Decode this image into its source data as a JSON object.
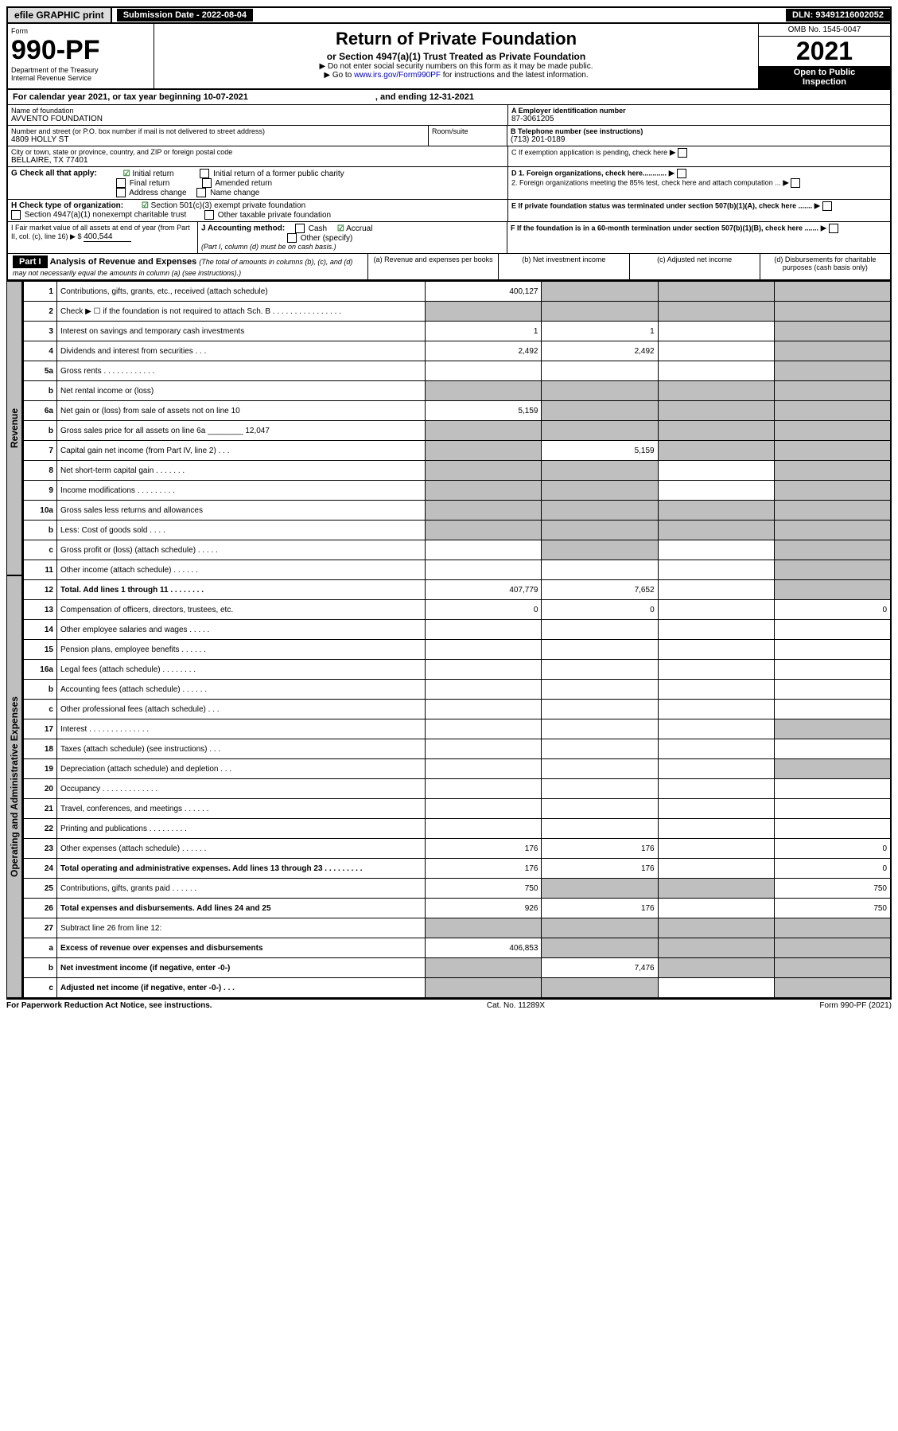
{
  "top": {
    "efile": "efile GRAPHIC print",
    "sub": "Submission Date - 2022-08-04",
    "dln": "DLN: 93491216002052"
  },
  "hleft": {
    "form": "Form",
    "no": "990-PF",
    "dept": "Department of the Treasury",
    "irs": "Internal Revenue Service"
  },
  "hcenter": {
    "title": "Return of Private Foundation",
    "sub1": "or Section 4947(a)(1) Trust Treated as Private Foundation",
    "sub2": "▶ Do not enter social security numbers on this form as it may be made public.",
    "sub3": "▶ Go to ",
    "link": "www.irs.gov/Form990PF",
    "sub4": " for instructions and the latest information."
  },
  "hright": {
    "omb": "OMB No. 1545-0047",
    "year": "2021",
    "otp1": "Open to Public",
    "otp2": "Inspection"
  },
  "cal": {
    "text": "For calendar year 2021, or tax year beginning 10-07-2021",
    "end": ", and ending 12-31-2021"
  },
  "name": {
    "lbl": "Name of foundation",
    "val": "AVVENTO FOUNDATION"
  },
  "ein": {
    "lbl": "A Employer identification number",
    "val": "87-3061205"
  },
  "addr": {
    "lbl": "Number and street (or P.O. box number if mail is not delivered to street address)",
    "val": "4809 HOLLY ST",
    "room": "Room/suite"
  },
  "tel": {
    "lbl": "B Telephone number (see instructions)",
    "val": "(713) 201-0189"
  },
  "city": {
    "lbl": "City or town, state or province, country, and ZIP or foreign postal code",
    "val": "BELLAIRE, TX  77401"
  },
  "c": {
    "lbl": "C If exemption application is pending, check here"
  },
  "g": {
    "lbl": "G Check all that apply:",
    "o1": "Initial return",
    "o2": "Initial return of a former public charity",
    "o3": "Final return",
    "o4": "Amended return",
    "o5": "Address change",
    "o6": "Name change"
  },
  "d": {
    "l1": "D 1. Foreign organizations, check here............",
    "l2": "2. Foreign organizations meeting the 85% test, check here and attach computation ..."
  },
  "h": {
    "lbl": "H Check type of organization:",
    "o1": "Section 501(c)(3) exempt private foundation",
    "o2": "Section 4947(a)(1) nonexempt charitable trust",
    "o3": "Other taxable private foundation"
  },
  "e": {
    "lbl": "E If private foundation status was terminated under section 507(b)(1)(A), check here ......."
  },
  "i": {
    "lbl": "I Fair market value of all assets at end of year (from Part II, col. (c), line 16) ▶ $",
    "val": "400,544"
  },
  "j": {
    "lbl": "J Accounting method:",
    "o1": "Cash",
    "o2": "Accrual",
    "o3": "Other (specify)",
    "note": "(Part I, column (d) must be on cash basis.)"
  },
  "f": {
    "lbl": "F  If the foundation is in a 60-month termination under section 507(b)(1)(B), check here ......."
  },
  "part1": {
    "lbl": "Part I",
    "title": "Analysis of Revenue and Expenses",
    "note": "(The total of amounts in columns (b), (c), and (d) may not necessarily equal the amounts in column (a) (see instructions).)",
    "colA": "(a)    Revenue and expenses per books",
    "colB": "(b)    Net investment income",
    "colC": "(c)    Adjusted net income",
    "colD": "(d)   Disbursements for charitable purposes (cash basis only)"
  },
  "rev": {
    "label": "Revenue"
  },
  "exp": {
    "label": "Operating and Administrative Expenses"
  },
  "rows": [
    {
      "n": "1",
      "d": "Contributions, gifts, grants, etc., received (attach schedule)",
      "a": "400,127",
      "bg": [
        "",
        "grey",
        "grey",
        "grey"
      ]
    },
    {
      "n": "2",
      "d": "Check ▶ ☐ if the foundation is not required to attach Sch. B     .   .   .   .   .   .   .   .   .   .   .   .   .   .   .   .",
      "bg": [
        "grey",
        "grey",
        "grey",
        "grey"
      ]
    },
    {
      "n": "3",
      "d": "Interest on savings and temporary cash investments",
      "a": "1",
      "b": "1",
      "bg": [
        "",
        "",
        "",
        "grey"
      ]
    },
    {
      "n": "4",
      "d": "Dividends and interest from securities    .   .   .",
      "a": "2,492",
      "b": "2,492",
      "bg": [
        "",
        "",
        "",
        "grey"
      ]
    },
    {
      "n": "5a",
      "d": "Gross rents     .   .   .   .   .   .   .   .   .   .   .   .",
      "bg": [
        "",
        "",
        "",
        "grey"
      ]
    },
    {
      "n": "b",
      "d": "Net rental income or (loss)",
      "bg": [
        "grey",
        "grey",
        "grey",
        "grey"
      ]
    },
    {
      "n": "6a",
      "d": "Net gain or (loss) from sale of assets not on line 10",
      "a": "5,159",
      "bg": [
        "",
        "grey",
        "grey",
        "grey"
      ]
    },
    {
      "n": "b",
      "d": "Gross sales price for all assets on line 6a ________   12,047",
      "bg": [
        "grey",
        "grey",
        "grey",
        "grey"
      ]
    },
    {
      "n": "7",
      "d": "Capital gain net income (from Part IV, line 2)   .   .   .",
      "b": "5,159",
      "bg": [
        "grey",
        "",
        "grey",
        "grey"
      ]
    },
    {
      "n": "8",
      "d": "Net short-term capital gain   .   .   .   .   .   .   .",
      "bg": [
        "grey",
        "grey",
        "",
        "grey"
      ]
    },
    {
      "n": "9",
      "d": "Income modifications  .   .   .   .   .   .   .   .   .",
      "bg": [
        "grey",
        "grey",
        "",
        "grey"
      ]
    },
    {
      "n": "10a",
      "d": "Gross sales less returns and allowances",
      "bg": [
        "grey",
        "grey",
        "grey",
        "grey"
      ]
    },
    {
      "n": "b",
      "d": "Less: Cost of goods sold     .   .   .   .",
      "bg": [
        "grey",
        "grey",
        "grey",
        "grey"
      ]
    },
    {
      "n": "c",
      "d": "Gross profit or (loss) (attach schedule)    .   .   .   .   .",
      "bg": [
        "",
        "grey",
        "",
        "grey"
      ]
    },
    {
      "n": "11",
      "d": "Other income (attach schedule)    .   .   .   .   .   .",
      "bg": [
        "",
        "",
        "",
        "grey"
      ]
    },
    {
      "n": "12",
      "d": "Total. Add lines 1 through 11   .   .   .   .   .   .   .   .",
      "a": "407,779",
      "b": "7,652",
      "bold": true,
      "bg": [
        "",
        "",
        "",
        "grey"
      ]
    },
    {
      "n": "13",
      "d": "Compensation of officers, directors, trustees, etc.",
      "a": "0",
      "b": "0",
      "dv": "0"
    },
    {
      "n": "14",
      "d": "Other employee salaries and wages    .   .   .   .   ."
    },
    {
      "n": "15",
      "d": "Pension plans, employee benefits  .   .   .   .   .   ."
    },
    {
      "n": "16a",
      "d": "Legal fees (attach schedule)  .   .   .   .   .   .   .   ."
    },
    {
      "n": "b",
      "d": "Accounting fees (attach schedule)  .   .   .   .   .   ."
    },
    {
      "n": "c",
      "d": "Other professional fees (attach schedule)    .   .   ."
    },
    {
      "n": "17",
      "d": "Interest  .   .   .   .   .   .   .   .   .   .   .   .   .   .",
      "bg": [
        "",
        "",
        "",
        "grey"
      ]
    },
    {
      "n": "18",
      "d": "Taxes (attach schedule) (see instructions)    .   .   ."
    },
    {
      "n": "19",
      "d": "Depreciation (attach schedule) and depletion   .   .   .",
      "bg": [
        "",
        "",
        "",
        "grey"
      ]
    },
    {
      "n": "20",
      "d": "Occupancy  .   .   .   .   .   .   .   .   .   .   .   .   ."
    },
    {
      "n": "21",
      "d": "Travel, conferences, and meetings  .   .   .   .   .   ."
    },
    {
      "n": "22",
      "d": "Printing and publications  .   .   .   .   .   .   .   .   ."
    },
    {
      "n": "23",
      "d": "Other expenses (attach schedule)  .   .   .   .   .   .",
      "a": "176",
      "b": "176",
      "dv": "0"
    },
    {
      "n": "24",
      "d": "Total operating and administrative expenses. Add lines 13 through 23   .   .   .   .   .   .   .   .   .",
      "a": "176",
      "b": "176",
      "dv": "0",
      "bold": true
    },
    {
      "n": "25",
      "d": "Contributions, gifts, grants paid     .   .   .   .   .   .",
      "a": "750",
      "dv": "750",
      "bg": [
        "",
        "grey",
        "grey",
        ""
      ]
    },
    {
      "n": "26",
      "d": "Total expenses and disbursements. Add lines 24 and 25",
      "a": "926",
      "b": "176",
      "dv": "750",
      "bold": true
    },
    {
      "n": "27",
      "d": "Subtract line 26 from line 12:",
      "bg": [
        "grey",
        "grey",
        "grey",
        "grey"
      ]
    },
    {
      "n": "a",
      "d": "Excess of revenue over expenses and disbursements",
      "a": "406,853",
      "bold": true,
      "bg": [
        "",
        "grey",
        "grey",
        "grey"
      ]
    },
    {
      "n": "b",
      "d": "Net investment income (if negative, enter -0-)",
      "b": "7,476",
      "bold": true,
      "bg": [
        "grey",
        "",
        "grey",
        "grey"
      ]
    },
    {
      "n": "c",
      "d": "Adjusted net income (if negative, enter -0-)   .   .   .",
      "bold": true,
      "bg": [
        "grey",
        "grey",
        "",
        "grey"
      ]
    }
  ],
  "footer": {
    "l": "For Paperwork Reduction Act Notice, see instructions.",
    "c": "Cat. No. 11289X",
    "r": "Form 990-PF (2021)"
  }
}
